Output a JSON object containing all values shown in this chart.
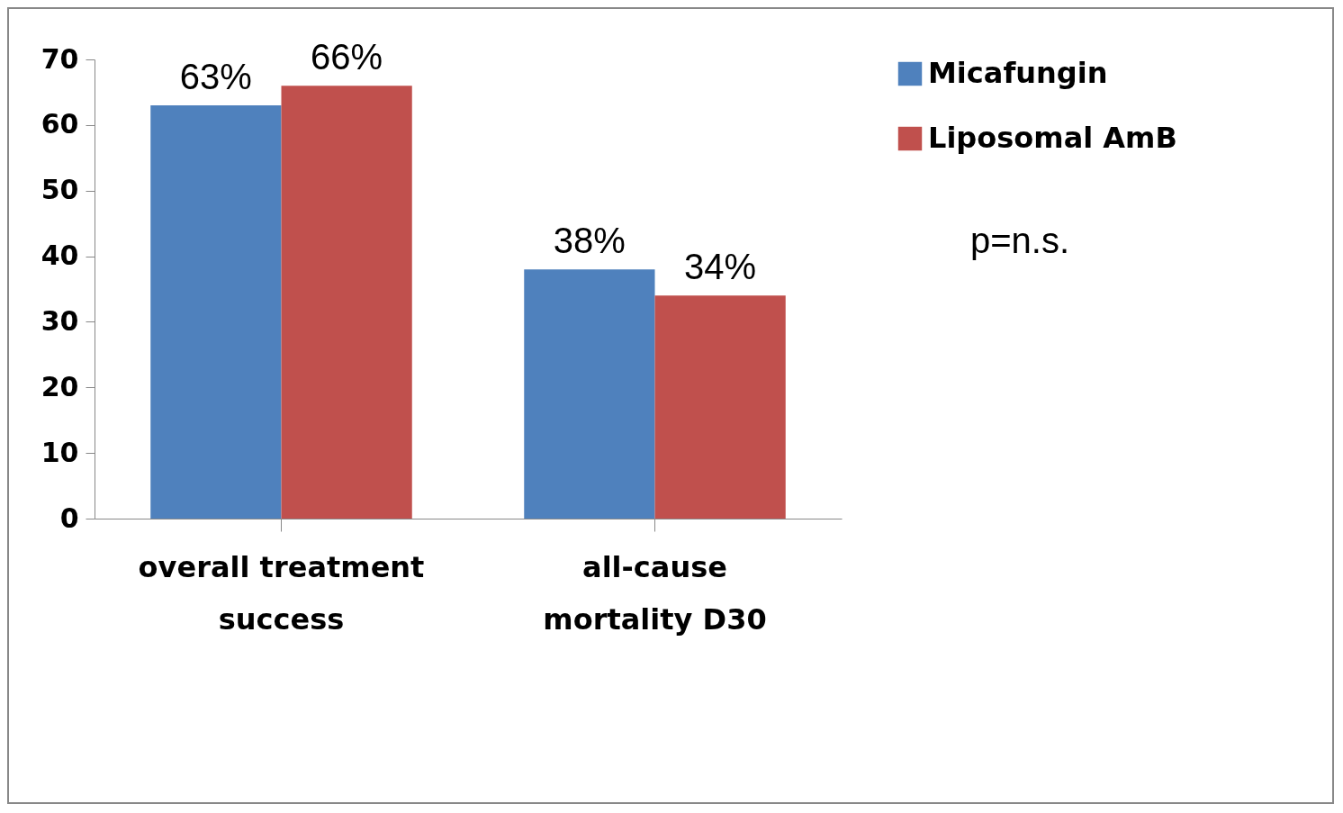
{
  "chart_data": {
    "type": "bar",
    "categories": [
      "overall treatment success",
      "all-cause mortality D30"
    ],
    "series": [
      {
        "name": "Micafungin",
        "color": "#4f81bd",
        "values": [
          63,
          38
        ],
        "value_labels": [
          "63%",
          "38%"
        ]
      },
      {
        "name": "Liposomal AmB",
        "color": "#c0504d",
        "values": [
          66,
          34
        ],
        "value_labels": [
          "66%",
          "34%"
        ]
      }
    ],
    "ylim": [
      0,
      70
    ],
    "yticks": [
      0,
      10,
      20,
      30,
      40,
      50,
      60,
      70
    ],
    "grid": false,
    "legend": "right",
    "annotations": [
      "p=n.s."
    ]
  }
}
